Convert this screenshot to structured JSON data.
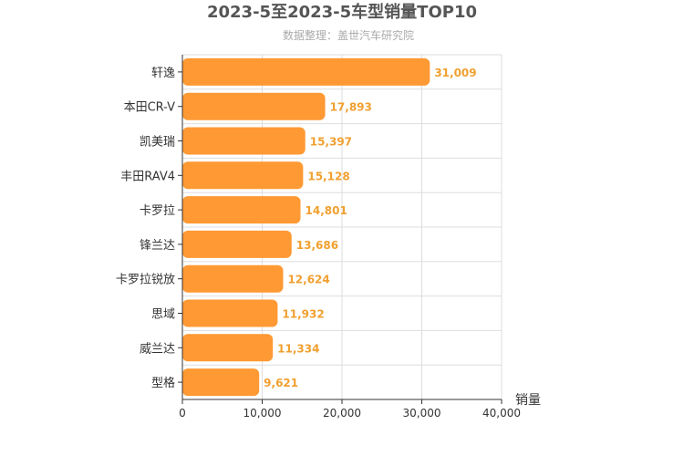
{
  "colors": {
    "bar": "#ff9933",
    "value_label": "#f0a030",
    "title": "#555555",
    "subtitle": "#aaaaaa",
    "grid": "#dddddd",
    "axis": "#333333"
  },
  "chart_data": {
    "type": "bar",
    "orientation": "horizontal",
    "title": "2023-5至2023-5车型销量TOP10",
    "subtitle": "数据整理：盖世汽车研究院",
    "xlabel": "销量",
    "ylabel": "",
    "xlim": [
      0,
      40000
    ],
    "xticks": [
      "0",
      "10,000",
      "20,000",
      "30,000",
      "40,000"
    ],
    "grid": true,
    "categories": [
      "轩逸",
      "本田CR-V",
      "凯美瑞",
      "丰田RAV4",
      "卡罗拉",
      "锋兰达",
      "卡罗拉锐放",
      "思域",
      "威兰达",
      "型格"
    ],
    "values": [
      31009,
      17893,
      15397,
      15128,
      14801,
      13686,
      12624,
      11932,
      11334,
      9621
    ],
    "value_labels": [
      "31,009",
      "17,893",
      "15,397",
      "15,128",
      "14,801",
      "13,686",
      "12,624",
      "11,932",
      "11,334",
      "9,621"
    ]
  }
}
